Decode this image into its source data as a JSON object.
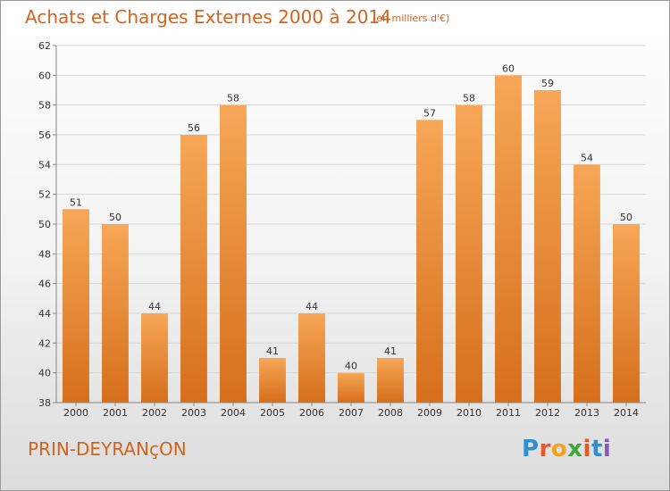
{
  "header": {
    "title": "Achats et Charges Externes 2000 à 2014",
    "unit": "(en milliers d'€)"
  },
  "footer": {
    "place": "PRIN-DEYRANçON",
    "logo_letters": [
      "P",
      "r",
      "o",
      "x",
      "i",
      "t",
      "i"
    ],
    "logo_colors": [
      "#2f8fd0",
      "#e8572a",
      "#f4a11f",
      "#3da63c",
      "#e8572a",
      "#2f8fd0",
      "#8a57b8"
    ]
  },
  "colors": {
    "bar_top": "#f6a757",
    "bar_bottom": "#d66f1c",
    "grid": "#d8d8d8",
    "axis": "#888888",
    "accent": "#d2641e"
  },
  "chart_data": {
    "type": "bar",
    "categories": [
      "2000",
      "2001",
      "2002",
      "2003",
      "2004",
      "2005",
      "2006",
      "2007",
      "2008",
      "2009",
      "2010",
      "2011",
      "2012",
      "2013",
      "2014"
    ],
    "values": [
      51,
      50,
      44,
      56,
      58,
      41,
      44,
      40,
      41,
      57,
      58,
      60,
      59,
      54,
      50
    ],
    "title": "Achats et Charges Externes 2000 à 2014",
    "ylabel": "",
    "xlabel": "",
    "ylim": [
      38,
      62
    ],
    "yticks": [
      38,
      40,
      42,
      44,
      46,
      48,
      50,
      52,
      54,
      56,
      58,
      60,
      62
    ],
    "grid": true,
    "data_labels": true
  }
}
